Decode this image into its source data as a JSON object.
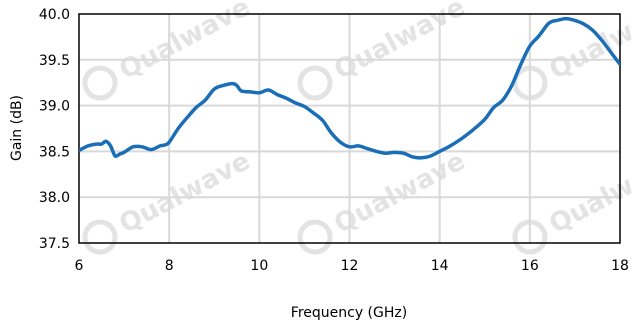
{
  "watermark": {
    "text": "Qualwave"
  },
  "chart_data": {
    "type": "line",
    "title": "",
    "xlabel": "Frequency (GHz)",
    "ylabel": "Gain (dB)",
    "xlim": [
      6,
      18
    ],
    "ylim": [
      37.5,
      40.0
    ],
    "xticks": [
      6,
      8,
      10,
      12,
      14,
      16,
      18
    ],
    "xtick_labels": [
      "6",
      "8",
      "10",
      "12",
      "14",
      "16",
      "18"
    ],
    "yticks": [
      37.5,
      38.0,
      38.5,
      39.0,
      39.5,
      40.0
    ],
    "ytick_labels": [
      "37.5",
      "38.0",
      "38.5",
      "39.0",
      "39.5",
      "40.0"
    ],
    "grid": true,
    "legend": "none",
    "series": [
      {
        "color": "#1a6eb8",
        "x": [
          6.0,
          6.2,
          6.4,
          6.5,
          6.6,
          6.7,
          6.8,
          6.9,
          7.0,
          7.2,
          7.4,
          7.6,
          7.8,
          7.9,
          8.0,
          8.2,
          8.4,
          8.6,
          8.8,
          9.0,
          9.2,
          9.4,
          9.5,
          9.6,
          9.8,
          10.0,
          10.2,
          10.4,
          10.6,
          10.8,
          11.0,
          11.2,
          11.4,
          11.6,
          11.8,
          12.0,
          12.2,
          12.4,
          12.6,
          12.8,
          13.0,
          13.2,
          13.4,
          13.6,
          13.8,
          14.0,
          14.2,
          14.4,
          14.6,
          14.8,
          15.0,
          15.2,
          15.4,
          15.6,
          15.8,
          16.0,
          16.2,
          16.4,
          16.5,
          16.6,
          16.8,
          17.0,
          17.2,
          17.4,
          17.6,
          17.8,
          18.0
        ],
        "y": [
          38.51,
          38.56,
          38.58,
          38.58,
          38.61,
          38.56,
          38.45,
          38.47,
          38.49,
          38.55,
          38.55,
          38.52,
          38.56,
          38.57,
          38.6,
          38.75,
          38.87,
          38.98,
          39.06,
          39.18,
          39.22,
          39.24,
          39.22,
          39.16,
          39.15,
          39.14,
          39.17,
          39.12,
          39.08,
          39.03,
          38.99,
          38.92,
          38.84,
          38.7,
          38.6,
          38.55,
          38.56,
          38.53,
          38.5,
          38.48,
          38.49,
          38.48,
          38.44,
          38.43,
          38.45,
          38.5,
          38.55,
          38.61,
          38.68,
          38.76,
          38.85,
          38.98,
          39.06,
          39.22,
          39.45,
          39.65,
          39.76,
          39.89,
          39.92,
          39.93,
          39.95,
          39.93,
          39.89,
          39.82,
          39.71,
          39.58,
          39.45
        ]
      }
    ]
  }
}
